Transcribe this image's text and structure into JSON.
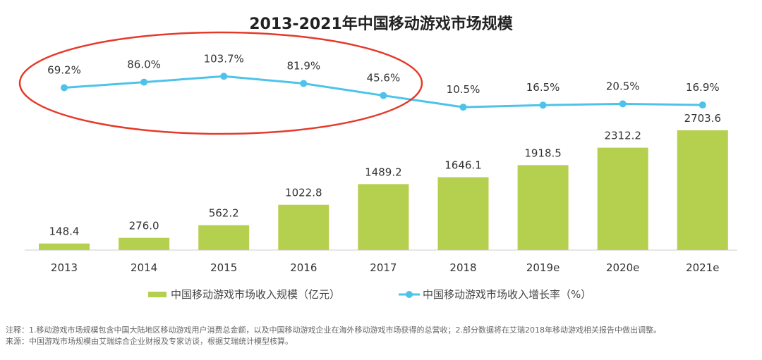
{
  "chart_data": {
    "type": "bar+line",
    "title": "2013-2021年中国移动游戏市场规模",
    "categories": [
      "2013",
      "2014",
      "2015",
      "2016",
      "2017",
      "2018",
      "2019e",
      "2020e",
      "2021e"
    ],
    "series": [
      {
        "name": "中国移动游戏市场收入规模（亿元）",
        "type": "bar",
        "color": "#b5cf4e",
        "values": [
          148.4,
          276.0,
          562.2,
          1022.8,
          1489.2,
          1646.1,
          1918.5,
          2312.2,
          2703.6
        ],
        "labels": [
          "148.4",
          "276.0",
          "562.2",
          "1022.8",
          "1489.2",
          "1646.1",
          "1918.5",
          "2312.2",
          "2703.6"
        ]
      },
      {
        "name": "中国移动游戏市场收入增长率（%）",
        "type": "line",
        "color": "#4dc3ea",
        "values": [
          69.2,
          86.0,
          103.7,
          81.9,
          45.6,
          10.5,
          16.5,
          20.5,
          16.9
        ],
        "labels": [
          "69.2%",
          "86.0%",
          "103.7%",
          "81.9%",
          "45.6%",
          "10.5%",
          "16.5%",
          "20.5%",
          "16.9%"
        ]
      }
    ],
    "grid": false,
    "legend": "bottom",
    "annotation": {
      "shape": "ellipse",
      "color": "#e53a2a",
      "covers": [
        "2013",
        "2014",
        "2015",
        "2016",
        "2017"
      ]
    }
  },
  "notes": {
    "note": "注释：1.移动游戏市场规模包含中国大陆地区移动游戏用户消费总金额，以及中国移动游戏企业在海外移动游戏市场获得的总营收；2.部分数据将在艾瑞2018年移动游戏相关报告中做出调整。",
    "source": "来源：中国游戏市场规模由艾瑞综合企业财报及专家访谈，根据艾瑞统计模型核算。"
  }
}
